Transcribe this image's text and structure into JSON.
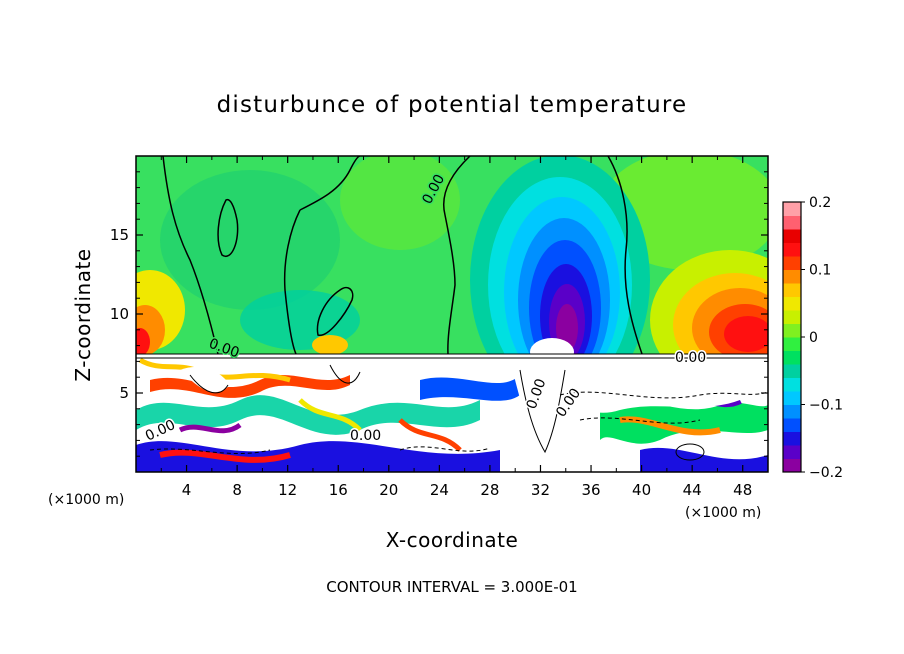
{
  "chart_data": {
    "type": "heatmap",
    "title": "disturbunce of potential temperature",
    "xlabel": "X-coordinate",
    "ylabel": "Z-coordinate",
    "x_unit": "(×1000 m)",
    "z_unit": "(×1000 m)",
    "xlim": [
      0,
      50
    ],
    "ylim": [
      0,
      20
    ],
    "x_ticks": [
      "4",
      "8",
      "12",
      "16",
      "20",
      "24",
      "28",
      "32",
      "36",
      "40",
      "44",
      "48"
    ],
    "y_ticks": [
      "5",
      "10",
      "15"
    ],
    "footer": "CONTOUR INTERVAL = 3.000E-01",
    "colorbar": {
      "range": [
        -0.2,
        0.2
      ],
      "tick_labels": [
        "0.2",
        "0.1",
        "0",
        "−0.1",
        "−0.2"
      ],
      "colors": [
        "#8b00a0",
        "#5a00c8",
        "#1a10e0",
        "#0050ff",
        "#0090ff",
        "#00c8ff",
        "#00e0e0",
        "#00d0a0",
        "#00e060",
        "#30f040",
        "#80f020",
        "#c8f000",
        "#f0e800",
        "#ffc800",
        "#ff8c00",
        "#ff4000",
        "#ff1010",
        "#e80000",
        "#ff6070",
        "#ffa0a8"
      ]
    },
    "contour_labels": [
      "0.00",
      "0.00",
      "0.00",
      "0.00",
      "0.00",
      "0.00",
      "0.00"
    ],
    "upper_field_description_values": {
      "background": 0.0,
      "cold_core": {
        "x": 33,
        "z": 10.5,
        "value": -0.2
      },
      "warm_right": {
        "x": 48,
        "z": 10,
        "value": 0.15
      },
      "warm_left": {
        "x": 0.5,
        "z": 8.5,
        "value": 0.15
      }
    }
  }
}
